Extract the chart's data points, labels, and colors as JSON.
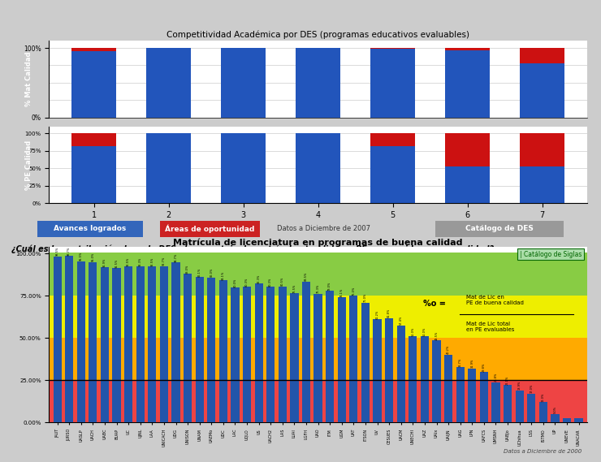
{
  "top_title": "Competitividad Académica por DES (programas educativos evaluables)",
  "top_categories": [
    "1",
    "2",
    "3",
    "4",
    "5",
    "6",
    "7"
  ],
  "top_blue1": [
    95,
    100,
    100,
    100,
    99,
    96,
    78
  ],
  "top_red1": [
    5,
    0,
    0,
    0,
    1,
    4,
    22
  ],
  "top_blue2": [
    82,
    100,
    100,
    100,
    82,
    52,
    52
  ],
  "top_red2": [
    18,
    0,
    0,
    0,
    18,
    48,
    48
  ],
  "ylabel_top1": "% Mat Calidad",
  "ylabel_top2": "% PE Calidad",
  "legend_blue": "Avances logrados",
  "legend_red": "Áreas de oportunidad",
  "legend_date": "Datos a Diciembre de 2007",
  "legend_gray": "Catálogo de DES",
  "question_text": "¿Cuál es la contribución de cada DES al porcentaje de matrícula atendida en PE reconocidos por su calidad?",
  "bottom_title": "Matrícula de licenciatura en programas de buena calidad",
  "bottom_label": "Catálogo de Siglas",
  "formula_pct": "%o =",
  "formula_num": "Mat de Lic en\nPE de buena calidad",
  "formula_den": "Mat de Lic total\nen PE evaluables",
  "bottom_date": "Datos a Diciembre de 2000",
  "bot_cats": [
    "JAUT",
    "JURSO",
    "UASLP",
    "UACH",
    "UABC",
    "BUAP",
    "UC",
    "UJNL",
    "LAA",
    "UNICACH",
    "UDG",
    "UNISON",
    "UNAM",
    "UAEMo",
    "UDC",
    "LAC",
    "UQLO",
    "US",
    "UACH2",
    "LAS",
    "LUAI",
    "LGFH",
    "UAO",
    "ITM",
    "UGM",
    "UAT",
    "ITSON",
    "UV",
    "CESUES",
    "UACM",
    "UNECHI",
    "UAZ",
    "UAIx",
    "UAIJN",
    "UAG",
    "LPN",
    "UAFCS",
    "UMSNH",
    "UABJo",
    "UChihua",
    "LSS",
    "ISTMO",
    "UP",
    "UNEVE",
    "UNACAR"
  ],
  "bot_values": [
    98.5,
    98.7,
    95.5,
    95.0,
    91.9,
    91.5,
    92.5,
    92.3,
    92.5,
    92.7,
    94.7,
    88.0,
    86.1,
    86.0,
    84.1,
    80.0,
    80.3,
    82.3,
    80.3,
    80.5,
    76.5,
    83.5,
    76.3,
    78.0,
    74.1,
    75.0,
    71.0,
    61.2,
    61.8,
    57.4,
    51.0,
    51.0,
    48.5,
    40.2,
    32.7,
    31.9,
    29.8,
    23.8,
    22.1,
    18.9,
    17.0,
    12.0,
    5.0,
    2.5,
    2.6
  ],
  "bar_color_top": "#2255bb",
  "bar_color_red": "#cc1111",
  "bar_color_bot": "#2255aa",
  "bg_green": "#88cc44",
  "bg_yellow": "#eeee00",
  "bg_orange": "#ffaa00",
  "bg_red": "#ee4444",
  "top_panel_bg": "#dddddd",
  "fig_bg": "#cccccc"
}
